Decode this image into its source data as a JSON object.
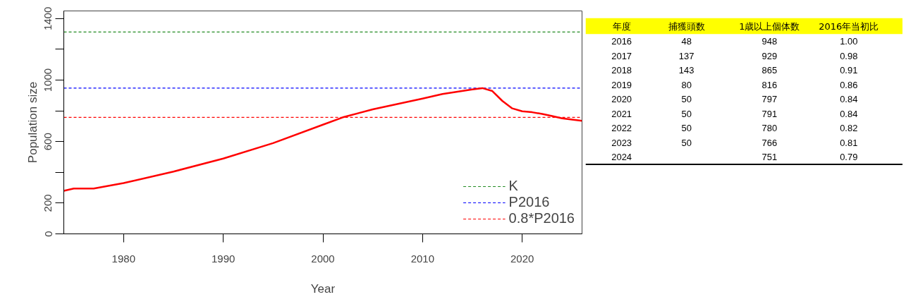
{
  "chart_data": [
    {
      "type": "line",
      "xlabel": "Year",
      "ylabel": "Population size",
      "x": [
        1974,
        1975,
        1977,
        1980,
        1985,
        1990,
        1995,
        2000,
        2002,
        2005,
        2010,
        2012,
        2015,
        2016,
        2017,
        2018,
        2019,
        2020,
        2021,
        2022,
        2023,
        2024,
        2026
      ],
      "series": [
        {
          "color": "#ff0000",
          "values": [
            280,
            295,
            295,
            330,
            405,
            490,
            590,
            710,
            758,
            810,
            880,
            910,
            940,
            948,
            929,
            865,
            816,
            797,
            791,
            780,
            766,
            751,
            735
          ]
        }
      ],
      "xlim": [
        1974,
        2026
      ],
      "xticks": [
        1980,
        1990,
        2000,
        2010,
        2020
      ],
      "ylim": [
        0,
        1450
      ],
      "yticks": [
        0,
        200,
        {
          "value": 400,
          "label": null
        },
        600,
        {
          "value": 800,
          "label": null
        },
        1000,
        {
          "value": 1200,
          "label": null
        },
        1400
      ],
      "ref_lines": [
        {
          "axis": "y",
          "value": 1313,
          "label": "K",
          "color": "#228b22",
          "line_style": "dashed"
        },
        {
          "axis": "y",
          "value": 948,
          "label": "P2016",
          "color": "#0000ff",
          "line_style": "dashed"
        },
        {
          "axis": "y",
          "value": 758,
          "label": "0.8*P2016",
          "color": "#ff0000",
          "line_style": "dashed"
        }
      ],
      "legend": "bottom right",
      "grid": false,
      "line_style": "solid",
      "marker": "none"
    },
    {
      "type": "heatmap",
      "ylabel": "年度",
      "categories": [
        "捕獲頭数",
        "1歳以上個体数",
        "2016年当初比"
      ],
      "y_categories": [
        "2016",
        "2017",
        "2018",
        "2019",
        "2020",
        "2021",
        "2022",
        "2023",
        "2024"
      ],
      "cells": [
        [
          48,
          948,
          1.0
        ],
        [
          137,
          929,
          0.98
        ],
        [
          143,
          865,
          0.91
        ],
        [
          80,
          816,
          0.86
        ],
        [
          50,
          797,
          0.84
        ],
        [
          50,
          791,
          0.84
        ],
        [
          50,
          780,
          0.82
        ],
        [
          50,
          766,
          0.81
        ],
        [
          null,
          751,
          0.79
        ]
      ],
      "cell_labels": [
        [
          "48",
          "948",
          "1.00"
        ],
        [
          "137",
          "929",
          "0.98"
        ],
        [
          "143",
          "865",
          "0.91"
        ],
        [
          "80",
          "816",
          "0.86"
        ],
        [
          "50",
          "797",
          "0.84"
        ],
        [
          "50",
          "791",
          "0.84"
        ],
        [
          "50",
          "780",
          "0.82"
        ],
        [
          "50",
          "766",
          "0.81"
        ],
        [
          null,
          "751",
          "0.79"
        ]
      ],
      "color": "#ffff00",
      "data_labels": true
    }
  ]
}
